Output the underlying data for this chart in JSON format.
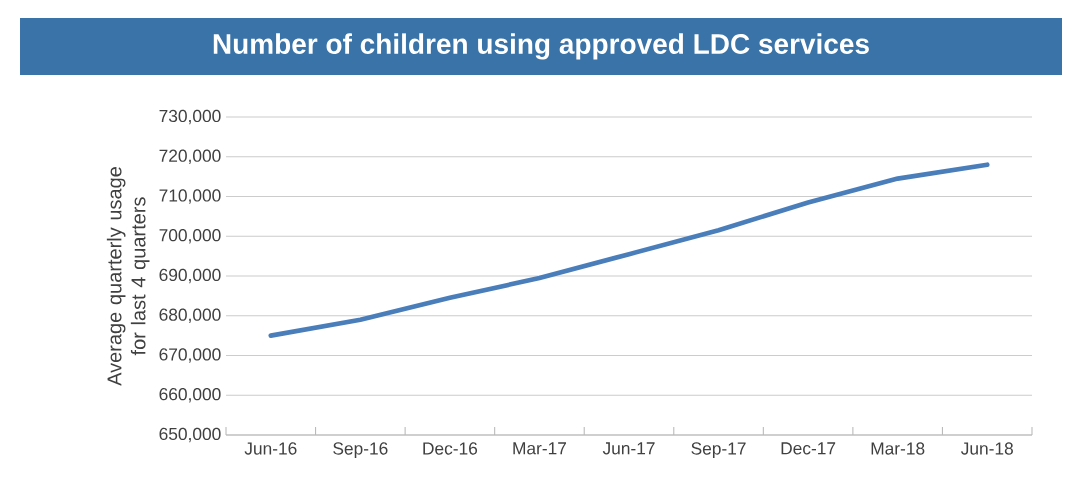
{
  "chart_data": {
    "type": "line",
    "title": "Number of children using approved LDC services",
    "ylabel": "Average quarterly usage for last 4 quarters",
    "categories": [
      "Jun-16",
      "Sep-16",
      "Dec-16",
      "Mar-17",
      "Jun-17",
      "Sep-17",
      "Dec-17",
      "Mar-18",
      "Jun-18"
    ],
    "values": [
      675000,
      679000,
      684500,
      689500,
      695500,
      701500,
      708500,
      714500,
      718000
    ],
    "color": "#4a7ebb",
    "ylim": [
      650000,
      730000
    ],
    "yticks": [
      {
        "value": 650000,
        "label": "650,000"
      },
      {
        "value": 660000,
        "label": "660,000"
      },
      {
        "value": 670000,
        "label": "670,000"
      },
      {
        "value": 680000,
        "label": "680,000"
      },
      {
        "value": 690000,
        "label": "690,000"
      },
      {
        "value": 700000,
        "label": "700,000"
      },
      {
        "value": 710000,
        "label": "710,000"
      },
      {
        "value": 720000,
        "label": "720,000"
      },
      {
        "value": 730000,
        "label": "730,000"
      }
    ],
    "grid": "y",
    "marker": "none",
    "line_style": "solid"
  }
}
